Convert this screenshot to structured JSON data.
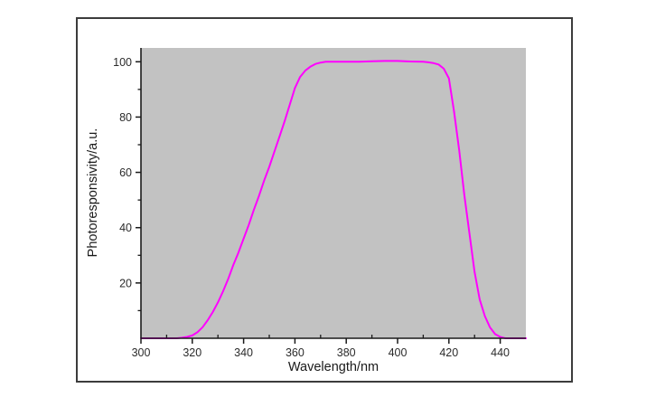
{
  "figure": {
    "background_color": "#ffffff",
    "frame_border_color": "#3c3c3c"
  },
  "chart_data": {
    "type": "line",
    "title": "",
    "xlabel": "Wavelength/nm",
    "ylabel": "Photoresponsivity/a.u.",
    "xlim": [
      300,
      450
    ],
    "ylim": [
      0,
      105
    ],
    "grid": false,
    "legend": "none",
    "plot_background_color": "#c2c2c2",
    "axis_color": "#1a1a1a",
    "x_major_ticks": [
      300,
      320,
      340,
      360,
      380,
      400,
      420,
      440
    ],
    "x_minor_ticks": [
      310,
      330,
      350,
      370,
      390,
      410,
      430
    ],
    "y_major_ticks": [
      20,
      40,
      60,
      80,
      100
    ],
    "y_minor_ticks": [
      10,
      30,
      50,
      70,
      90
    ],
    "series": [
      {
        "name": "photoresponsivity",
        "color": "#ff00ff",
        "line_width": 2,
        "x": [
          300,
          302,
          304,
          306,
          308,
          310,
          312,
          314,
          316,
          318,
          320,
          322,
          324,
          326,
          328,
          330,
          332,
          334,
          336,
          338,
          340,
          342,
          344,
          346,
          348,
          350,
          352,
          354,
          356,
          358,
          360,
          362,
          364,
          366,
          368,
          370,
          372,
          374,
          376,
          378,
          380,
          385,
          390,
          395,
          400,
          405,
          410,
          412,
          414,
          416,
          418,
          420,
          422,
          424,
          426,
          428,
          430,
          432,
          434,
          436,
          438,
          440,
          442,
          444,
          446,
          448,
          450
        ],
        "y": [
          0,
          0,
          0,
          0,
          0,
          0,
          0,
          0,
          0.2,
          0.5,
          1,
          2.2,
          4,
          6.5,
          9.5,
          13,
          17,
          21.5,
          26.5,
          31,
          36,
          41,
          46.5,
          51.5,
          57,
          62,
          67.5,
          73,
          78.5,
          84.5,
          90.5,
          94.5,
          96.8,
          98.2,
          99.2,
          99.7,
          100,
          100,
          100,
          100,
          100,
          100,
          100.2,
          100.3,
          100.3,
          100.1,
          100,
          99.8,
          99.5,
          99,
          97.5,
          94,
          82,
          68,
          52,
          38,
          24,
          14,
          8,
          4,
          1.5,
          0.5,
          0,
          0,
          0,
          0,
          0
        ]
      }
    ]
  }
}
